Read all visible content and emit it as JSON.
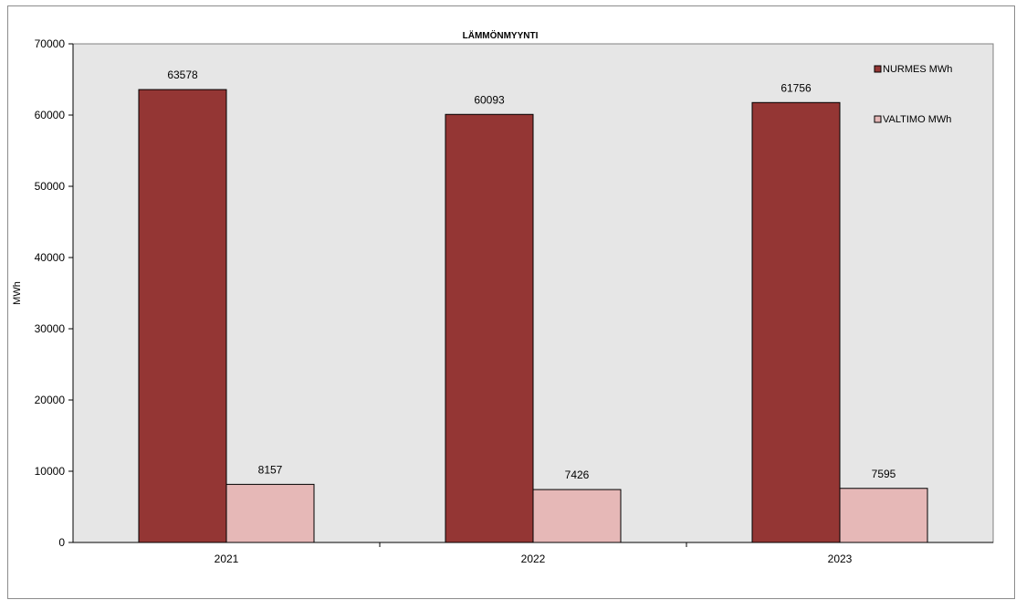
{
  "chart_data": {
    "type": "bar",
    "title": "LÄMMÖNMYYNTI",
    "xlabel": "",
    "ylabel": "MWh",
    "categories": [
      "2021",
      "2022",
      "2023"
    ],
    "series": [
      {
        "name": "NURMES MWh",
        "values": [
          63578,
          60093,
          61756
        ],
        "color": "#943634",
        "data_labels": [
          "63578",
          "60093",
          "61756"
        ]
      },
      {
        "name": "VALTIMO MWh",
        "values": [
          8157,
          7426,
          7595
        ],
        "color": "#e6b8b7",
        "data_labels": [
          "8157",
          "7426",
          "7595"
        ]
      }
    ],
    "ylim": [
      0,
      70000
    ],
    "yticks": [
      "0",
      "10000",
      "20000",
      "30000",
      "40000",
      "50000",
      "60000",
      "70000"
    ],
    "grid": false,
    "plot_background": "#e6e6e6",
    "legend_position": "top-right"
  }
}
